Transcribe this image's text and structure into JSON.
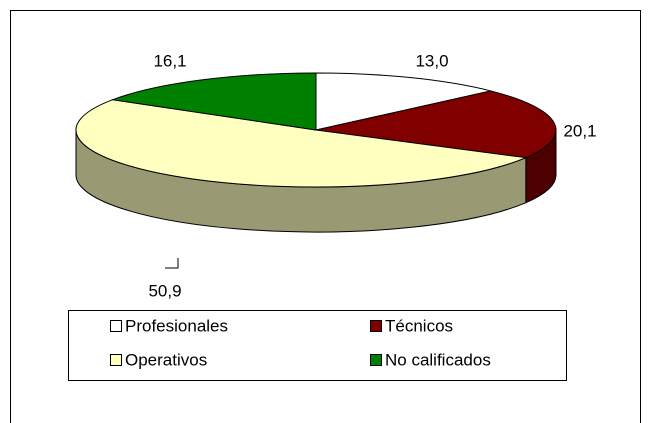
{
  "chart_data": {
    "type": "pie",
    "categories": [
      "Profesionales",
      "Técnicos",
      "Operativos",
      "No calificados"
    ],
    "values": [
      13.0,
      20.1,
      50.9,
      16.1
    ],
    "value_labels": [
      "13,0",
      "20,1",
      "50,9",
      "16,1"
    ],
    "colors": [
      "#ffffff",
      "#800000",
      "#ffffc0",
      "#008000"
    ]
  }
}
